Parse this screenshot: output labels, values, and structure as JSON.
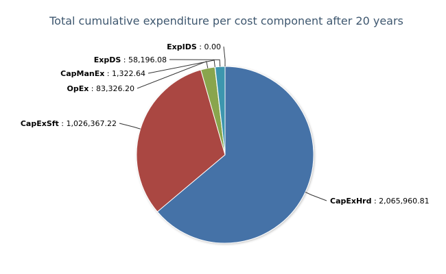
{
  "chart_data": {
    "type": "pie",
    "title": "Total cumulative expenditure per cost component after 20 years",
    "slices": [
      {
        "name": "CapExHrd",
        "value": 2065960.81,
        "label": "2,065,960.81",
        "color": "#4572a7"
      },
      {
        "name": "CapExSft",
        "value": 1026367.22,
        "label": "1,026,367.22",
        "color": "#aa4643"
      },
      {
        "name": "OpEx",
        "value": 83326.2,
        "label": "83,326.20",
        "color": "#89a54e"
      },
      {
        "name": "CapManEx",
        "value": 1322.64,
        "label": "1,322.64",
        "color": "#80699b"
      },
      {
        "name": "ExpDS",
        "value": 58196.08,
        "label": "58,196.08",
        "color": "#3d96ae"
      },
      {
        "name": "ExpIDS",
        "value": 0.0,
        "label": "0.00",
        "color": "#db843d"
      }
    ]
  }
}
